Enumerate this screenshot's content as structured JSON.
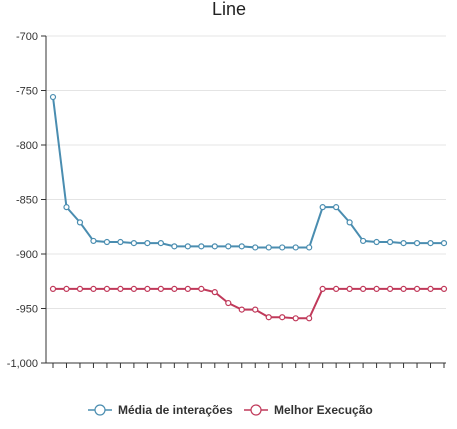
{
  "chart_data": {
    "type": "line",
    "title": "Line",
    "xlabel": "",
    "ylabel": "",
    "ylim": [
      -1000,
      -700
    ],
    "y_ticks": [
      {
        "value": -700,
        "label": "-700"
      },
      {
        "value": -750,
        "label": "-750"
      },
      {
        "value": -800,
        "label": "-800"
      },
      {
        "value": -850,
        "label": "-850"
      },
      {
        "value": -900,
        "label": "-900"
      },
      {
        "value": -950,
        "label": "-950"
      },
      {
        "value": -1000,
        "label": "-1,000"
      }
    ],
    "x": [
      1,
      2,
      3,
      4,
      5,
      6,
      7,
      8,
      9,
      10,
      11,
      12,
      13,
      14,
      15,
      16,
      17,
      18,
      19,
      20,
      21,
      22,
      23,
      24,
      25,
      26,
      27,
      28,
      29,
      30
    ],
    "grid": "horizontal",
    "legend": "bottom",
    "series": [
      {
        "name": "Média de interações",
        "color": "#4a8db0",
        "values": [
          -756,
          -857,
          -871,
          -888,
          -889,
          -889,
          -890,
          -890,
          -890,
          -893,
          -893,
          -893,
          -893,
          -893,
          -893,
          -894,
          -894,
          -894,
          -894,
          -894,
          -857,
          -857,
          -871,
          -888,
          -889,
          -889,
          -890,
          -890,
          -890,
          -890
        ]
      },
      {
        "name": "Melhor Execução",
        "color": "#c0395a",
        "values": [
          -932,
          -932,
          -932,
          -932,
          -932,
          -932,
          -932,
          -932,
          -932,
          -932,
          -932,
          -932,
          -935,
          -945,
          -951,
          -951,
          -958,
          -958,
          -959,
          -959,
          -932,
          -932,
          -932,
          -932,
          -932,
          -932,
          -932,
          -932,
          -932,
          -932
        ]
      }
    ]
  }
}
